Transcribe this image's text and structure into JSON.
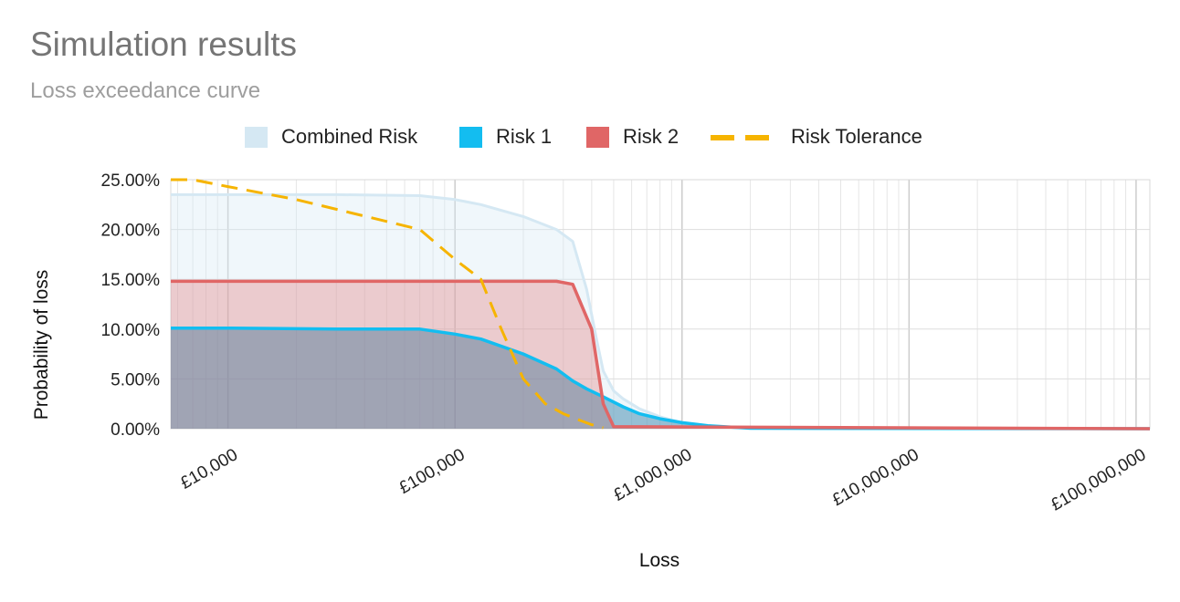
{
  "chart_data": {
    "type": "area",
    "title": "Simulation results",
    "subtitle": "Loss exceedance curve",
    "xlabel": "Loss",
    "ylabel": "Probability of loss",
    "x_scale": "log",
    "xlim": [
      5600,
      115000000
    ],
    "ylim": [
      0,
      0.25
    ],
    "x_tick_values": [
      10000,
      100000,
      1000000,
      10000000,
      100000000
    ],
    "x_tick_labels": [
      "£10,000",
      "£100,000",
      "£1,000,000",
      "£10,000,000",
      "£100,000,000"
    ],
    "y_tick_values": [
      0,
      0.05,
      0.1,
      0.15,
      0.2,
      0.25
    ],
    "y_tick_labels": [
      "0.00%",
      "5.00%",
      "10.00%",
      "15.00%",
      "20.00%",
      "25.00%"
    ],
    "legend_position": "top",
    "grid": true,
    "series": [
      {
        "name": "Combined Risk",
        "style": "area",
        "color": "#d5e8f3",
        "x": [
          5600,
          10000,
          30000,
          70000,
          100000,
          130000,
          200000,
          280000,
          330000,
          380000,
          420000,
          450000,
          500000,
          550000,
          650000,
          800000,
          1000000,
          1300000,
          2000000,
          115000000
        ],
        "y": [
          0.235,
          0.235,
          0.235,
          0.234,
          0.23,
          0.225,
          0.213,
          0.2,
          0.188,
          0.14,
          0.09,
          0.058,
          0.038,
          0.03,
          0.02,
          0.012,
          0.006,
          0.003,
          0.0005,
          0.0
        ]
      },
      {
        "name": "Risk 1",
        "style": "area",
        "color": "#13bdf0",
        "x": [
          5600,
          10000,
          30000,
          70000,
          100000,
          130000,
          200000,
          280000,
          330000,
          380000,
          450000,
          550000,
          650000,
          800000,
          1000000,
          1300000,
          2000000,
          115000000
        ],
        "y": [
          0.101,
          0.101,
          0.1,
          0.1,
          0.095,
          0.09,
          0.075,
          0.06,
          0.048,
          0.04,
          0.032,
          0.022,
          0.015,
          0.01,
          0.006,
          0.003,
          0.0005,
          0.0
        ]
      },
      {
        "name": "Risk 2",
        "style": "area",
        "color": "#e06666",
        "x": [
          5600,
          10000,
          100000,
          280000,
          330000,
          400000,
          450000,
          500000,
          115000000
        ],
        "y": [
          0.148,
          0.148,
          0.148,
          0.148,
          0.145,
          0.1,
          0.025,
          0.002,
          0.0
        ]
      },
      {
        "name": "Risk Tolerance",
        "style": "dashed-line",
        "color": "#f6b400",
        "x": [
          5600,
          7000,
          10000,
          20000,
          70000,
          100000,
          130000,
          160000,
          200000,
          250000,
          300000,
          350000,
          400000,
          450000
        ],
        "y": [
          0.25,
          0.25,
          0.243,
          0.23,
          0.2,
          0.17,
          0.15,
          0.1,
          0.05,
          0.025,
          0.015,
          0.009,
          0.004,
          0.001
        ]
      }
    ]
  }
}
